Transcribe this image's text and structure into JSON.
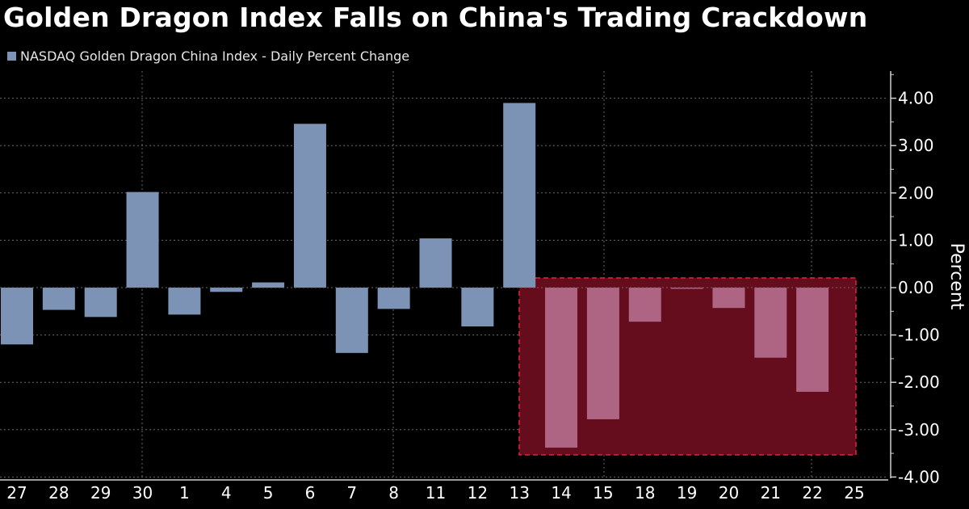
{
  "title": "Golden Dragon Index Falls on China's Trading Crackdown",
  "legend": {
    "label": "NASDAQ Golden Dragon China Index - Daily Percent Change",
    "color": "#7c93b5"
  },
  "chart_data": {
    "type": "bar",
    "categories": [
      "27",
      "28",
      "29",
      "30",
      "1",
      "4",
      "5",
      "6",
      "7",
      "8",
      "11",
      "12",
      "13",
      "14",
      "15",
      "18",
      "19",
      "20",
      "21",
      "22",
      "25"
    ],
    "values": [
      -1.2,
      -0.47,
      -0.62,
      2.02,
      -0.57,
      -0.09,
      0.11,
      3.46,
      -1.38,
      -0.45,
      1.04,
      -0.82,
      3.9,
      -3.38,
      -2.78,
      -0.72,
      -0.02,
      -0.43,
      -1.48,
      -2.2,
      null
    ],
    "highlight_index_start": 13,
    "xlabel": "",
    "ylabel": "Percent",
    "ylim": [
      -4,
      4
    ],
    "yticks": [
      "4.00",
      "3.00",
      "2.00",
      "1.00",
      "0.00",
      "-1.00",
      "-2.00",
      "-3.00",
      "-4.00"
    ],
    "grid": true,
    "colors": {
      "bar": "#7c93b5",
      "highlight_bar": "#ae6584",
      "highlight_box": "#650c1d",
      "highlight_border": "#e0253f",
      "grid": "#6a6a6a"
    },
    "axis_position": "right"
  }
}
